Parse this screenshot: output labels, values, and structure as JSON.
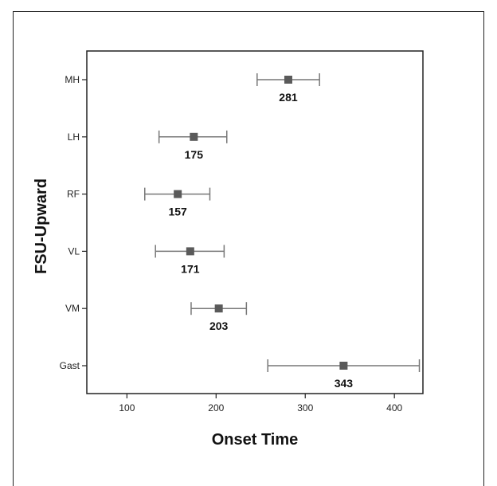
{
  "chart_data": {
    "type": "scatter",
    "xlabel": "Onset Time",
    "ylabel": "FSU-Upward",
    "xlim": [
      55,
      432
    ],
    "xticks": [
      100,
      200,
      300,
      400
    ],
    "categories": [
      "MH",
      "LH",
      "RF",
      "VL",
      "VM",
      "Gast"
    ],
    "series": [
      {
        "points": [
          {
            "category": "MH",
            "value": 281,
            "err_low": 246,
            "err_high": 316,
            "label": "281"
          },
          {
            "category": "LH",
            "value": 175,
            "err_low": 136,
            "err_high": 212,
            "label": "175"
          },
          {
            "category": "RF",
            "value": 157,
            "err_low": 120,
            "err_high": 193,
            "label": "157"
          },
          {
            "category": "VL",
            "value": 171,
            "err_low": 132,
            "err_high": 209,
            "label": "171"
          },
          {
            "category": "VM",
            "value": 203,
            "err_low": 172,
            "err_high": 234,
            "label": "203"
          },
          {
            "category": "Gast",
            "value": 343,
            "err_low": 258,
            "err_high": 428,
            "label": "343"
          }
        ]
      }
    ],
    "grid": false,
    "legend": "none",
    "colors": {
      "marker": "#5a5a5a",
      "errorbar": "#777777",
      "axis": "#222222"
    }
  }
}
